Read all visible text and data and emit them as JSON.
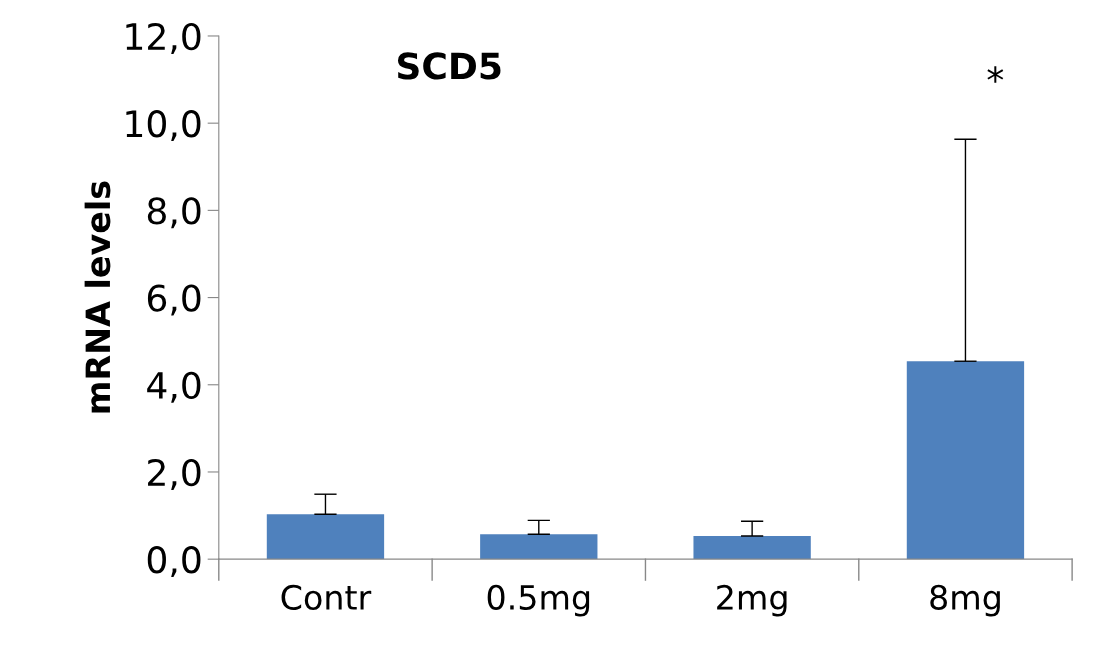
{
  "chart_data": {
    "type": "bar",
    "title": "SCD5",
    "ylabel": "mRNA levels",
    "categories": [
      "Contr",
      "0.5mg",
      "2mg",
      "8mg"
    ],
    "values": [
      1.03,
      0.57,
      0.53,
      4.54
    ],
    "errors": [
      [
        1.03,
        1.49
      ],
      [
        0.57,
        0.89
      ],
      [
        0.53,
        0.87
      ],
      [
        4.54,
        9.63
      ]
    ],
    "color": "#4f81bd",
    "ylim": [
      0,
      12
    ],
    "yticks": [
      {
        "value": 0,
        "label": "0,0"
      },
      {
        "value": 2,
        "label": "2,0"
      },
      {
        "value": 4,
        "label": "4,0"
      },
      {
        "value": 6,
        "label": "6,0"
      },
      {
        "value": 8,
        "label": "8,0"
      },
      {
        "value": 10,
        "label": "10,0"
      },
      {
        "value": 12,
        "label": "12,0"
      }
    ],
    "annotations": [
      "*"
    ],
    "grid": false,
    "legend": false
  }
}
